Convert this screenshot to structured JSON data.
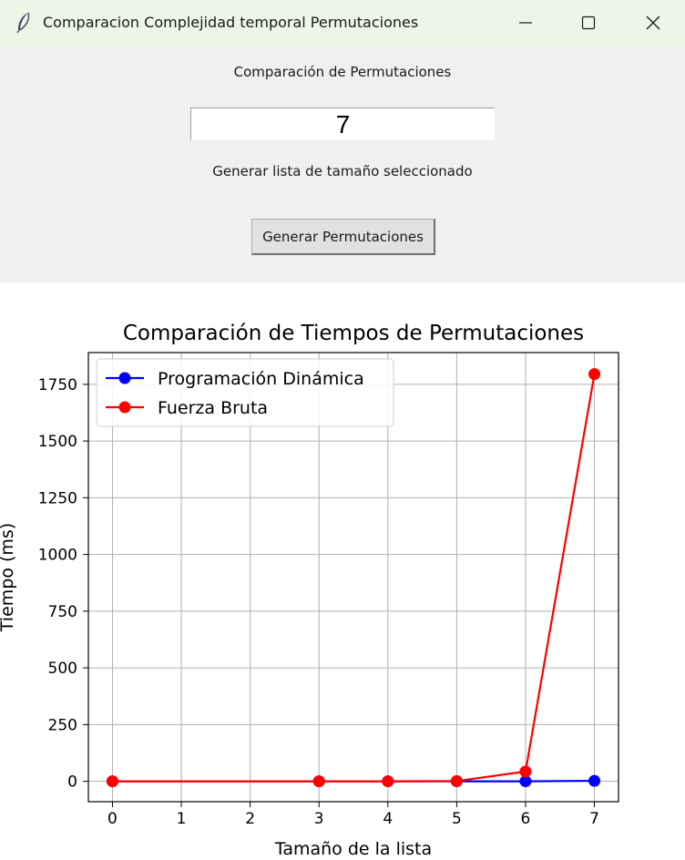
{
  "window": {
    "title": "Comparacion Complejidad temporal Permutaciones",
    "icon": "feather-icon"
  },
  "controls": {
    "heading": "Comparación de Permutaciones",
    "size_value": "7",
    "hint": "Generar lista de tamaño seleccionado",
    "generate_button": "Generar Permutaciones"
  },
  "chart_data": {
    "type": "line",
    "title": "Comparación de Tiempos de Permutaciones",
    "xlabel": "Tamaño de la lista",
    "ylabel": "Tiempo (ms)",
    "xlim": [
      -0.35,
      7.35
    ],
    "ylim": [
      -90,
      1890
    ],
    "xticks": [
      0,
      1,
      2,
      3,
      4,
      5,
      6,
      7
    ],
    "yticks": [
      0,
      250,
      500,
      750,
      1000,
      1250,
      1500,
      1750
    ],
    "grid": true,
    "legend": "top-left",
    "series": [
      {
        "name": "Programación Dinámica",
        "color": "#0000ff",
        "x": [
          0,
          3,
          4,
          5,
          6,
          7
        ],
        "y": [
          0,
          0,
          0,
          0,
          0,
          2
        ]
      },
      {
        "name": "Fuerza Bruta",
        "color": "#ff0000",
        "x": [
          0,
          3,
          4,
          5,
          6,
          7
        ],
        "y": [
          0,
          0,
          0,
          1,
          43,
          1795
        ]
      }
    ]
  }
}
